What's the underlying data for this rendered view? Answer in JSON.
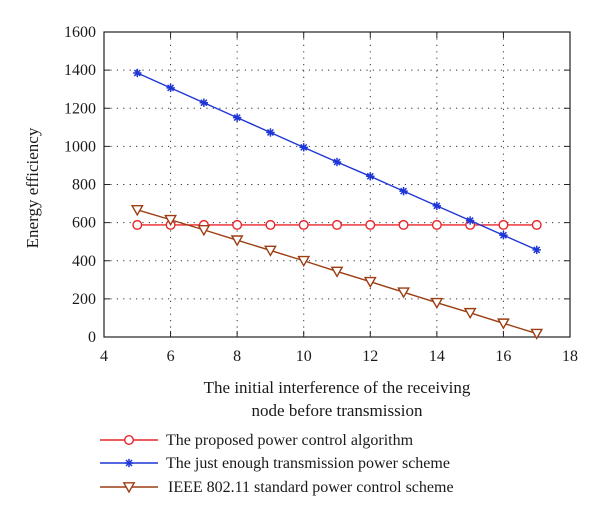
{
  "chart_data": {
    "type": "line",
    "title": "",
    "xlabel_lines": [
      "The initial interference of the receiving",
      "node before transmission"
    ],
    "ylabel": "Energy efficiency",
    "xlim": [
      4,
      18
    ],
    "ylim": [
      0,
      1600
    ],
    "xticks": [
      "4",
      "6",
      "8",
      "10",
      "12",
      "14",
      "16",
      "18"
    ],
    "yticks": [
      "0",
      "200",
      "400",
      "600",
      "800",
      "1000",
      "1200",
      "1400",
      "1600"
    ],
    "grid": "dotted",
    "legend_position": "below",
    "x": [
      5,
      6,
      7,
      8,
      9,
      10,
      11,
      12,
      13,
      14,
      15,
      16,
      17
    ],
    "series": [
      {
        "name": "The proposed power control algorithm",
        "color": "#e8262b",
        "marker": "circle",
        "values": [
          588,
          588,
          588,
          588,
          588,
          588,
          588,
          588,
          588,
          588,
          588,
          588,
          588
        ]
      },
      {
        "name": "The just enough transmission power scheme",
        "color": "#1f36d6",
        "marker": "star",
        "values": [
          1385,
          1307,
          1229,
          1151,
          1073,
          995,
          918,
          843,
          765,
          688,
          611,
          534,
          457
        ]
      },
      {
        "name": "IEEE 802.11 standard power control scheme",
        "color": "#9c3d12",
        "marker": "triangle-down",
        "values": [
          667,
          615,
          562,
          508,
          454,
          400,
          344,
          290,
          235,
          180,
          127,
          72,
          18
        ]
      }
    ]
  }
}
